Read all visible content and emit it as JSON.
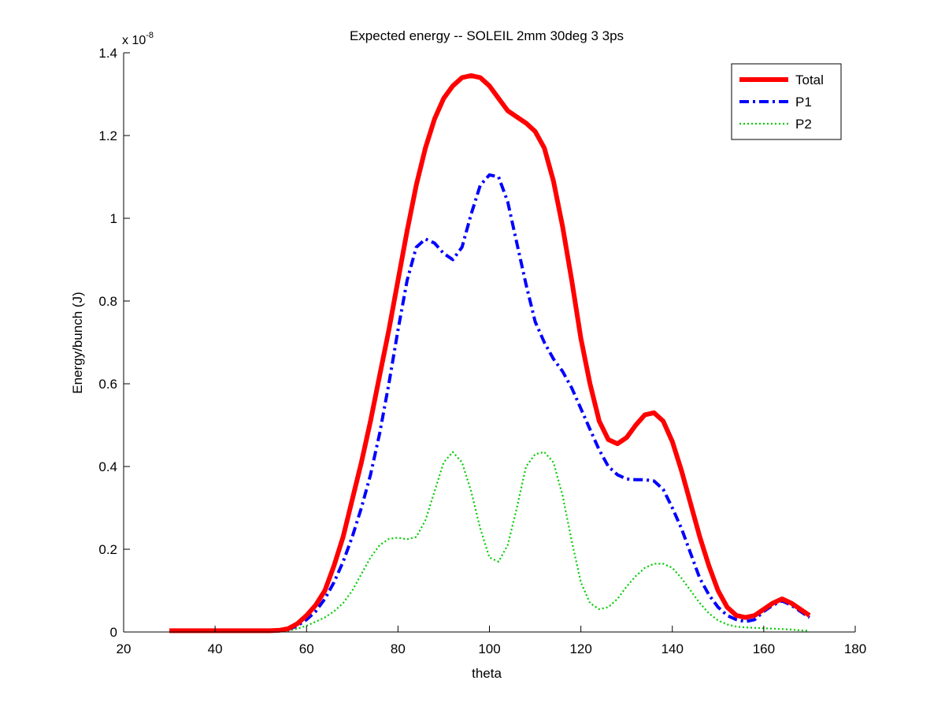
{
  "chart_data": {
    "type": "line",
    "title": "Expected energy -- SOLEIL 2mm 30deg 3 3ps",
    "xlabel": "theta",
    "ylabel": "Energy/bunch (J)",
    "y_exponent_label": "x 10",
    "y_exponent_value": "-8",
    "xlim": [
      20,
      180
    ],
    "ylim": [
      0,
      1.4
    ],
    "x_ticks": [
      20,
      40,
      60,
      80,
      100,
      120,
      140,
      160,
      180
    ],
    "y_ticks": [
      0,
      0.2,
      0.4,
      0.6,
      0.8,
      1,
      1.2,
      1.4
    ],
    "grid": false,
    "legend_position": "top-right",
    "x": [
      30,
      35,
      40,
      45,
      50,
      52,
      54,
      56,
      58,
      60,
      62,
      64,
      66,
      68,
      70,
      72,
      74,
      76,
      78,
      80,
      82,
      84,
      86,
      88,
      90,
      92,
      94,
      96,
      98,
      100,
      102,
      104,
      106,
      108,
      110,
      112,
      114,
      116,
      118,
      120,
      122,
      124,
      126,
      128,
      130,
      132,
      134,
      136,
      138,
      140,
      142,
      144,
      146,
      148,
      150,
      152,
      154,
      156,
      158,
      160,
      162,
      164,
      166,
      168,
      170
    ],
    "series": [
      {
        "name": "Total",
        "color": "#ff0000",
        "style": "solid",
        "values": [
          0.003,
          0.003,
          0.003,
          0.003,
          0.003,
          0.003,
          0.004,
          0.008,
          0.02,
          0.04,
          0.065,
          0.1,
          0.16,
          0.23,
          0.32,
          0.41,
          0.51,
          0.62,
          0.73,
          0.85,
          0.97,
          1.08,
          1.17,
          1.24,
          1.29,
          1.32,
          1.34,
          1.345,
          1.34,
          1.32,
          1.29,
          1.26,
          1.245,
          1.23,
          1.21,
          1.17,
          1.09,
          0.98,
          0.85,
          0.71,
          0.6,
          0.51,
          0.465,
          0.455,
          0.47,
          0.5,
          0.525,
          0.53,
          0.51,
          0.46,
          0.39,
          0.31,
          0.23,
          0.16,
          0.1,
          0.06,
          0.04,
          0.035,
          0.04,
          0.055,
          0.07,
          0.08,
          0.07,
          0.055,
          0.04
        ]
      },
      {
        "name": "P1",
        "color": "#0000ff",
        "style": "dashdot",
        "values": [
          0.003,
          0.003,
          0.003,
          0.003,
          0.003,
          0.003,
          0.003,
          0.006,
          0.015,
          0.03,
          0.05,
          0.08,
          0.12,
          0.17,
          0.23,
          0.3,
          0.38,
          0.48,
          0.6,
          0.73,
          0.85,
          0.93,
          0.95,
          0.94,
          0.915,
          0.9,
          0.93,
          1.01,
          1.08,
          1.105,
          1.1,
          1.04,
          0.94,
          0.84,
          0.75,
          0.7,
          0.66,
          0.63,
          0.59,
          0.54,
          0.49,
          0.44,
          0.4,
          0.38,
          0.37,
          0.368,
          0.368,
          0.365,
          0.345,
          0.3,
          0.25,
          0.19,
          0.13,
          0.09,
          0.06,
          0.04,
          0.03,
          0.025,
          0.03,
          0.05,
          0.065,
          0.075,
          0.065,
          0.05,
          0.035
        ]
      },
      {
        "name": "P2",
        "color": "#00cc00",
        "style": "dotted",
        "values": [
          0.0,
          0.0,
          0.0,
          0.0,
          0.0,
          0.0,
          0.001,
          0.003,
          0.008,
          0.015,
          0.025,
          0.035,
          0.05,
          0.07,
          0.1,
          0.14,
          0.18,
          0.21,
          0.225,
          0.228,
          0.224,
          0.23,
          0.27,
          0.34,
          0.41,
          0.435,
          0.41,
          0.34,
          0.25,
          0.18,
          0.17,
          0.21,
          0.3,
          0.4,
          0.43,
          0.435,
          0.41,
          0.33,
          0.22,
          0.12,
          0.07,
          0.055,
          0.06,
          0.08,
          0.11,
          0.135,
          0.155,
          0.165,
          0.165,
          0.155,
          0.13,
          0.1,
          0.07,
          0.045,
          0.028,
          0.018,
          0.013,
          0.011,
          0.01,
          0.009,
          0.008,
          0.007,
          0.006,
          0.004,
          0.003
        ]
      }
    ]
  }
}
